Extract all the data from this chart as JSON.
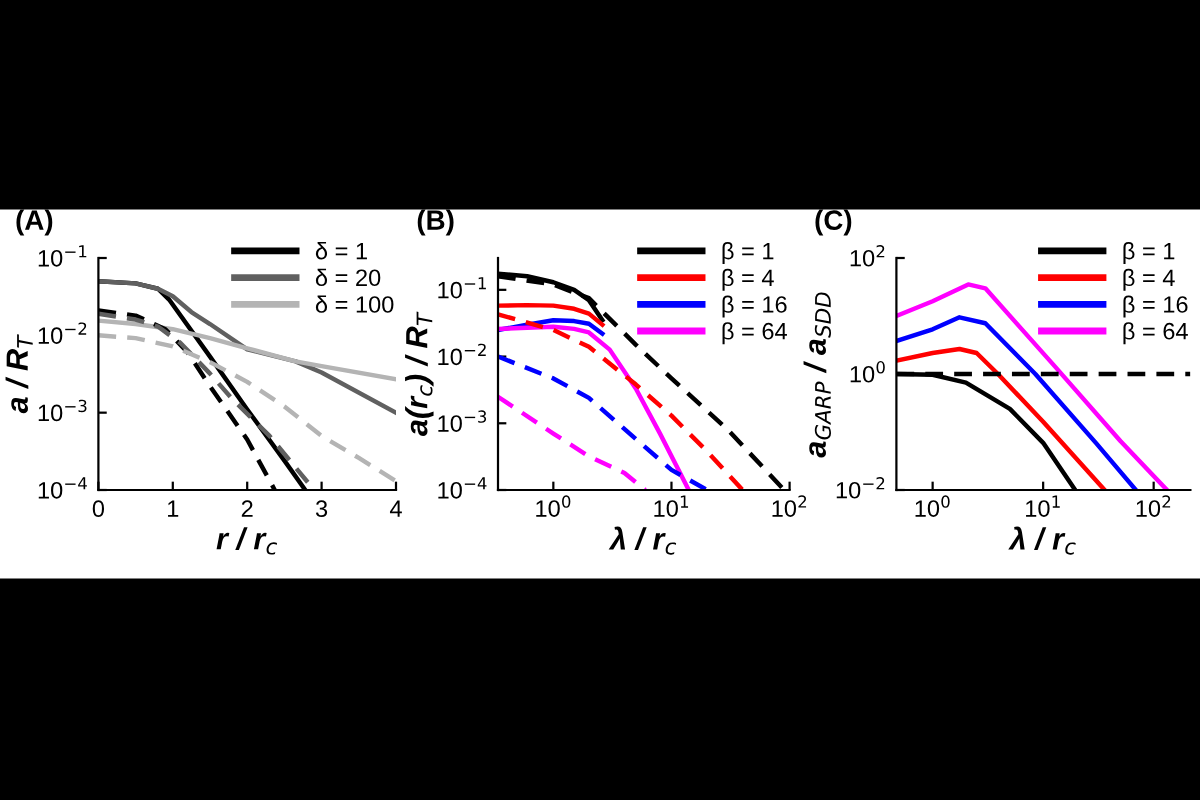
{
  "chart_data": [
    {
      "type": "line",
      "title": "(A)",
      "xlabel": "r / r$_{c}$",
      "ylabel": "a / R$_{T}$",
      "log": "y",
      "legend": "top right",
      "xlim": [
        0,
        4
      ],
      "ylim": [
        0.0001,
        0.1
      ],
      "xticks": [
        0,
        1,
        2,
        3,
        4
      ],
      "yticks": [
        {
          "value": 0.0001,
          "label": "10$^{−4}$"
        },
        {
          "value": 0.001,
          "label": "10$^{−3}$"
        },
        {
          "value": 0.01,
          "label": "10$^{−2}$"
        },
        {
          "value": 0.1,
          "label": "10$^{−1}$"
        }
      ],
      "series": [
        {
          "name": "δ = 1",
          "color": "#000000",
          "line_style": "solid",
          "x": [
            0,
            0.5,
            0.8,
            0.95,
            1.5,
            2.0,
            2.5,
            2.78
          ],
          "values": [
            0.05,
            0.047,
            0.04,
            0.029,
            0.0053,
            0.0011,
            0.00024,
            0.0001
          ]
        },
        {
          "name": "δ = 20",
          "color": "#606060",
          "line_style": "solid",
          "x": [
            0,
            0.5,
            0.8,
            1.0,
            1.25,
            1.5,
            2.0,
            2.65,
            3.0,
            4.0
          ],
          "values": [
            0.05,
            0.047,
            0.04,
            0.032,
            0.02,
            0.014,
            0.0066,
            0.0046,
            0.0033,
            0.001
          ]
        },
        {
          "name": "δ = 100",
          "color": "#b4b4b4",
          "line_style": "solid",
          "x": [
            0,
            0.5,
            1.0,
            1.5,
            2.0,
            2.65,
            3.0,
            4.0
          ],
          "values": [
            0.0155,
            0.014,
            0.012,
            0.0092,
            0.0068,
            0.0046,
            0.004,
            0.0027
          ]
        },
        {
          "color": "#000000",
          "line_style": "dashed",
          "x": [
            0,
            0.5,
            0.9,
            1.2,
            1.5,
            2.0,
            2.37
          ],
          "values": [
            0.021,
            0.018,
            0.012,
            0.006,
            0.0022,
            0.00045,
            0.0001
          ]
        },
        {
          "color": "#606060",
          "line_style": "dashed",
          "x": [
            0,
            0.5,
            0.8,
            1.1,
            1.5,
            1.8,
            2.3,
            2.9
          ],
          "values": [
            0.019,
            0.016,
            0.013,
            0.008,
            0.0032,
            0.0015,
            0.0005,
            0.0001
          ]
        },
        {
          "color": "#b4b4b4",
          "line_style": "dashed",
          "x": [
            0,
            0.5,
            1.0,
            1.5,
            2.0,
            2.5,
            3.0,
            3.5,
            4.0
          ],
          "values": [
            0.01,
            0.0092,
            0.0072,
            0.0045,
            0.0025,
            0.0012,
            0.0005,
            0.00026,
            0.00013
          ]
        }
      ]
    },
    {
      "type": "line",
      "title": "(B)",
      "xlabel": "λ / r$_{c}$",
      "ylabel": "a(r$_{c}$) / R$_{T}$",
      "log": "xy",
      "legend": "top right",
      "xlim": [
        0.34,
        100
      ],
      "ylim": [
        0.0001,
        0.3
      ],
      "xticks": [
        {
          "value": 1,
          "label": "10$^{0}$"
        },
        {
          "value": 10,
          "label": "10$^{1}$"
        },
        {
          "value": 100,
          "label": "10$^{2}$"
        }
      ],
      "yticks": [
        {
          "value": 0.0001,
          "label": "10$^{−4}$"
        },
        {
          "value": 0.001,
          "label": "10$^{−3}$"
        },
        {
          "value": 0.01,
          "label": "10$^{−2}$"
        },
        {
          "value": 0.1,
          "label": "10$^{−1}$"
        }
      ],
      "series": [
        {
          "name": "β = 1",
          "color": "#000000",
          "line_style": "solid",
          "x": [
            0.34,
            0.6,
            1,
            1.5,
            2,
            2.6
          ],
          "values": [
            0.175,
            0.16,
            0.13,
            0.1,
            0.07,
            0.035
          ]
        },
        {
          "name": "β = 4",
          "color": "#ff0000",
          "line_style": "solid",
          "x": [
            0.34,
            0.6,
            1,
            1.5,
            2,
            2.6
          ],
          "values": [
            0.058,
            0.059,
            0.058,
            0.052,
            0.044,
            0.03
          ]
        },
        {
          "name": "β = 16",
          "color": "#0000ff",
          "line_style": "solid",
          "x": [
            0.34,
            0.6,
            1,
            1.5,
            2,
            2.6
          ],
          "values": [
            0.025,
            0.03,
            0.035,
            0.034,
            0.031,
            0.022
          ]
        },
        {
          "name": "β = 64",
          "color": "#ff00ff",
          "line_style": "solid",
          "x": [
            0.34,
            0.6,
            1,
            1.5,
            2,
            3,
            5,
            8,
            14
          ],
          "values": [
            0.026,
            0.027,
            0.028,
            0.026,
            0.023,
            0.0127,
            0.0033,
            0.0007,
            0.0001
          ]
        },
        {
          "color": "#000000",
          "line_style": "dashed",
          "x": [
            0.34,
            1,
            2,
            5,
            10,
            30,
            90
          ],
          "values": [
            0.16,
            0.12,
            0.075,
            0.015,
            0.0047,
            0.0008,
            0.0001
          ]
        },
        {
          "color": "#ff0000",
          "line_style": "dashed",
          "x": [
            0.34,
            1,
            2,
            5,
            10,
            20,
            40
          ],
          "values": [
            0.043,
            0.025,
            0.014,
            0.0038,
            0.0013,
            0.00038,
            0.0001
          ]
        },
        {
          "color": "#0000ff",
          "line_style": "dashed",
          "x": [
            0.34,
            1,
            2,
            5,
            10,
            20
          ],
          "values": [
            0.01,
            0.0047,
            0.0024,
            0.00058,
            0.0002,
            0.0001
          ]
        },
        {
          "color": "#ff00ff",
          "line_style": "dashed",
          "x": [
            0.34,
            1,
            2,
            4,
            6
          ],
          "values": [
            0.0025,
            0.0007,
            0.00032,
            0.00018,
            0.0001
          ]
        }
      ]
    },
    {
      "type": "line",
      "title": "(C)",
      "xlabel": "λ / r$_{c}$",
      "ylabel": "a$_{GARP}$ / a$_{SDD}$",
      "log": "xy",
      "legend": "top right",
      "xlim": [
        0.47,
        215
      ],
      "ylim": [
        0.01,
        100
      ],
      "xticks": [
        {
          "value": 1,
          "label": "10$^{0}$"
        },
        {
          "value": 10,
          "label": "10$^{1}$"
        },
        {
          "value": 100,
          "label": "10$^{2}$"
        }
      ],
      "yticks": [
        {
          "value": 0.01,
          "label": "10$^{−2}$"
        },
        {
          "value": 1,
          "label": "10$^{0}$"
        },
        {
          "value": 100,
          "label": "10$^{2}$"
        }
      ],
      "ref_lines": [
        {
          "axis": "y",
          "value": 1,
          "color": "#000000",
          "line_style": "dashed"
        }
      ],
      "series": [
        {
          "name": "β = 1",
          "color": "#000000",
          "line_style": "solid",
          "x": [
            0.47,
            1,
            2,
            5,
            10,
            19.5
          ],
          "values": [
            1.0,
            0.97,
            0.71,
            0.25,
            0.065,
            0.01
          ]
        },
        {
          "name": "β = 4",
          "color": "#ff0000",
          "line_style": "solid",
          "x": [
            0.47,
            1,
            1.75,
            2.5,
            3.9,
            10,
            36
          ],
          "values": [
            1.7,
            2.3,
            2.7,
            2.3,
            1.0,
            0.15,
            0.01
          ]
        },
        {
          "name": "β = 16",
          "color": "#0000ff",
          "line_style": "solid",
          "x": [
            0.47,
            1,
            1.75,
            3,
            8.5,
            30,
            69
          ],
          "values": [
            3.7,
            5.9,
            9.5,
            7.5,
            1.0,
            0.065,
            0.01
          ]
        },
        {
          "name": "β = 64",
          "color": "#ff00ff",
          "line_style": "solid",
          "x": [
            0.47,
            1,
            2.1,
            3,
            13,
            50,
            132
          ],
          "values": [
            10,
            18,
            35,
            30,
            1.3,
            0.07,
            0.01
          ]
        }
      ]
    }
  ]
}
